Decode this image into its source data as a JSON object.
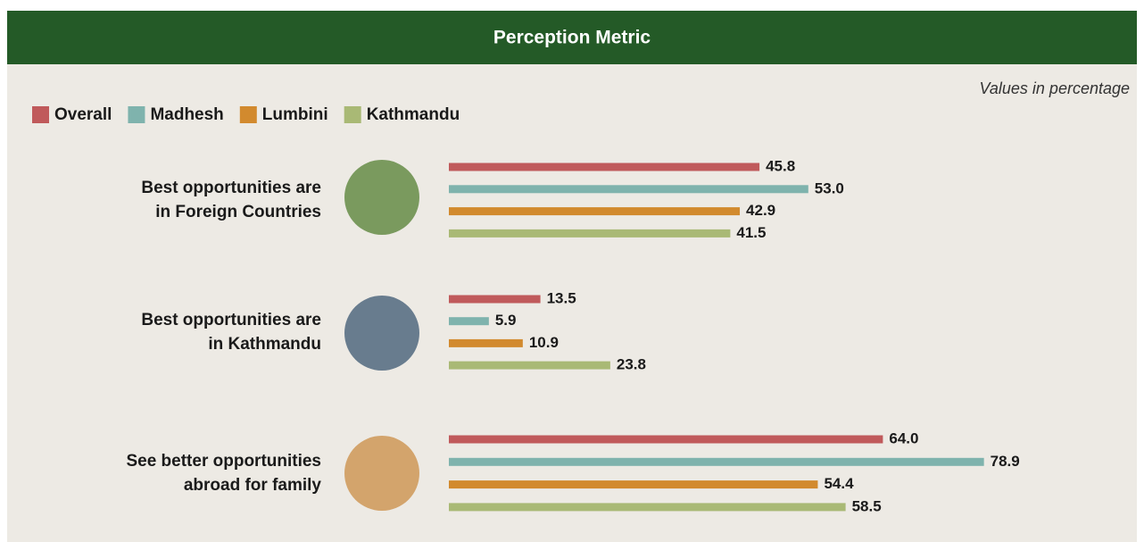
{
  "chart_data": {
    "type": "bar",
    "orientation": "horizontal",
    "title": "Perception Metric",
    "note": "Values in percentage",
    "categories": [
      [
        "Best opportunities are",
        "in Foreign Countries"
      ],
      [
        "Best opportunities are",
        "in Kathmandu"
      ],
      [
        "See better opportunities",
        "abroad for family"
      ]
    ],
    "series": [
      {
        "name": "Overall",
        "color": "#c05a5b",
        "values": [
          45.8,
          13.5,
          64.0
        ],
        "value_labels": [
          "45.8",
          "13.5",
          "64.0"
        ]
      },
      {
        "name": "Madhesh",
        "color": "#7fb3ad",
        "values": [
          53.0,
          5.9,
          78.9
        ],
        "value_labels": [
          "53.0",
          "5.9",
          "78.9"
        ]
      },
      {
        "name": "Lumbini",
        "color": "#d28a2e",
        "values": [
          42.9,
          10.9,
          54.4
        ],
        "value_labels": [
          "42.9",
          "10.9",
          "54.4"
        ]
      },
      {
        "name": "Kathmandu",
        "color": "#a9b975",
        "values": [
          41.5,
          23.8,
          58.5
        ],
        "value_labels": [
          "41.5",
          "23.8",
          "58.5"
        ]
      }
    ]
  }
}
